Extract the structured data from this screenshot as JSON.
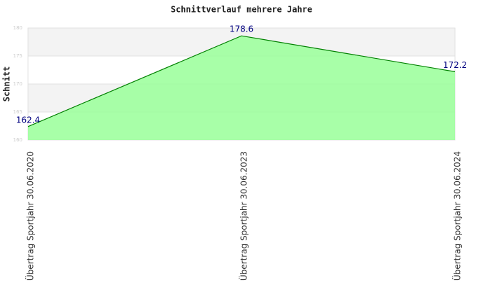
{
  "chart_data": {
    "type": "area",
    "title": "Schnittverlauf mehrere Jahre",
    "y_label": "Schnitt",
    "categories": [
      "Übertrag Sportjahr 30.06.2020",
      "Übertrag Sportjahr 30.06.2023",
      "Übertrag Sportjahr 30.06.2024"
    ],
    "values": [
      162.4,
      178.6,
      172.2
    ],
    "color": "#99ff99",
    "line_color": "#008000",
    "label_color": "#000080",
    "ylim": [
      160,
      180
    ],
    "yticks": [
      160,
      165,
      170,
      175,
      180
    ],
    "grid": true
  }
}
